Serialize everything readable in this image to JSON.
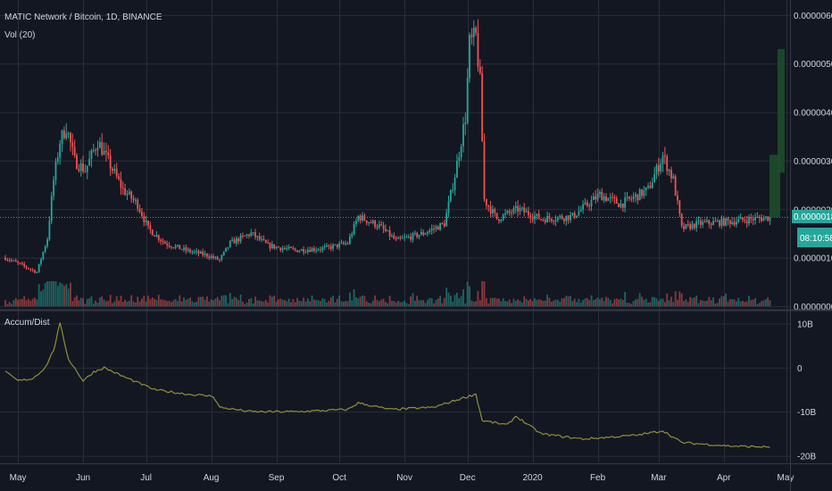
{
  "header": {
    "symbol_title": "MATIC Network / Bitcoin, 1D, BINANCE",
    "volume_label": "Vol (20)",
    "indicator_label": "Accum/Dist"
  },
  "price_badges": {
    "last_price": "0.00000183",
    "countdown": "08:10:58"
  },
  "colors": {
    "background": "#131722",
    "grid": "#2a2e39",
    "up": "#26a69a",
    "down": "#ef5350",
    "ad_line": "#8f8f3a",
    "projection": "#1e4d2b",
    "price_line": "#26a69a"
  },
  "chart_data": [
    {
      "type": "candlestick",
      "panel": "price",
      "y_tick_labels": [
        "0.00000600",
        "0.00000500",
        "0.00000400",
        "0.00000300",
        "0.00000200",
        "0.00000100",
        "0.00000000"
      ],
      "y_ticks": [
        6e-06,
        5e-06,
        4e-06,
        3e-06,
        2e-06,
        1e-06,
        0
      ],
      "ylim": [
        0,
        6.2e-06
      ],
      "last_value": 1.83e-06,
      "keypoints_date_close": [
        [
          "2019-04-25",
          1e-06
        ],
        [
          "2019-05-05",
          8e-07
        ],
        [
          "2019-05-10",
          7e-07
        ],
        [
          "2019-05-15",
          1.4e-06
        ],
        [
          "2019-05-18",
          2.6e-06
        ],
        [
          "2019-05-21",
          3.4e-06
        ],
        [
          "2019-05-24",
          3.7e-06
        ],
        [
          "2019-05-28",
          3e-06
        ],
        [
          "2019-06-02",
          2.8e-06
        ],
        [
          "2019-06-08",
          3.4e-06
        ],
        [
          "2019-06-14",
          2.9e-06
        ],
        [
          "2019-06-20",
          2.4e-06
        ],
        [
          "2019-06-27",
          2.1e-06
        ],
        [
          "2019-07-02",
          1.6e-06
        ],
        [
          "2019-07-10",
          1.3e-06
        ],
        [
          "2019-07-20",
          1.15e-06
        ],
        [
          "2019-07-30",
          1.05e-06
        ],
        [
          "2019-08-05",
          9.5e-07
        ],
        [
          "2019-08-10",
          1.3e-06
        ],
        [
          "2019-08-20",
          1.5e-06
        ],
        [
          "2019-08-28",
          1.25e-06
        ],
        [
          "2019-09-10",
          1.15e-06
        ],
        [
          "2019-09-25",
          1.2e-06
        ],
        [
          "2019-10-05",
          1.3e-06
        ],
        [
          "2019-10-10",
          1.85e-06
        ],
        [
          "2019-10-20",
          1.65e-06
        ],
        [
          "2019-10-28",
          1.35e-06
        ],
        [
          "2019-11-10",
          1.5e-06
        ],
        [
          "2019-11-20",
          1.7e-06
        ],
        [
          "2019-11-25",
          2.7e-06
        ],
        [
          "2019-11-30",
          3.9e-06
        ],
        [
          "2019-12-02",
          5.4e-06
        ],
        [
          "2019-12-05",
          5.55e-06
        ],
        [
          "2019-12-07",
          4.6e-06
        ],
        [
          "2019-12-09",
          2.2e-06
        ],
        [
          "2019-12-15",
          1.8e-06
        ],
        [
          "2019-12-25",
          2e-06
        ],
        [
          "2020-01-05",
          1.8e-06
        ],
        [
          "2020-01-20",
          1.85e-06
        ],
        [
          "2020-02-02",
          2.3e-06
        ],
        [
          "2020-02-12",
          2.1e-06
        ],
        [
          "2020-02-25",
          2.4e-06
        ],
        [
          "2020-03-03",
          3.1e-06
        ],
        [
          "2020-03-08",
          2.6e-06
        ],
        [
          "2020-03-12",
          1.6e-06
        ],
        [
          "2020-03-20",
          1.7e-06
        ],
        [
          "2020-04-05",
          1.75e-06
        ],
        [
          "2020-04-15",
          1.8e-06
        ],
        [
          "2020-04-23",
          1.83e-06
        ]
      ]
    },
    {
      "type": "bar",
      "panel": "volume",
      "name": "Vol (20)"
    },
    {
      "type": "line",
      "panel": "indicator",
      "name": "Accum/Dist",
      "y_tick_labels": [
        "10B",
        "0",
        "-10B",
        "-20B"
      ],
      "y_ticks": [
        10,
        0,
        -10,
        -20
      ],
      "ylim": [
        -21.5,
        12.5
      ],
      "keypoints_date_value": [
        [
          "2019-04-25",
          -1
        ],
        [
          "2019-05-01",
          -3
        ],
        [
          "2019-05-08",
          -2.5
        ],
        [
          "2019-05-14",
          0
        ],
        [
          "2019-05-18",
          4
        ],
        [
          "2019-05-21",
          10
        ],
        [
          "2019-05-25",
          2
        ],
        [
          "2019-06-01",
          -3
        ],
        [
          "2019-06-06",
          -1
        ],
        [
          "2019-06-11",
          0
        ],
        [
          "2019-06-20",
          -2
        ],
        [
          "2019-07-05",
          -5
        ],
        [
          "2019-07-20",
          -6
        ],
        [
          "2019-08-02",
          -6.5
        ],
        [
          "2019-08-05",
          -9
        ],
        [
          "2019-08-20",
          -10
        ],
        [
          "2019-09-10",
          -10
        ],
        [
          "2019-10-05",
          -9.5
        ],
        [
          "2019-10-10",
          -8
        ],
        [
          "2019-10-25",
          -9.5
        ],
        [
          "2019-11-15",
          -9
        ],
        [
          "2019-11-28",
          -7
        ],
        [
          "2019-12-05",
          -6
        ],
        [
          "2019-12-08",
          -12
        ],
        [
          "2019-12-20",
          -13
        ],
        [
          "2019-12-24",
          -11
        ],
        [
          "2020-01-05",
          -15
        ],
        [
          "2020-01-25",
          -16.2
        ],
        [
          "2020-02-20",
          -15.3
        ],
        [
          "2020-03-03",
          -14.3
        ],
        [
          "2020-03-12",
          -17
        ],
        [
          "2020-04-05",
          -17.8
        ],
        [
          "2020-04-23",
          -18
        ]
      ]
    }
  ],
  "x_axis": {
    "start_date": "2019-04-25",
    "end_date": "2020-04-30",
    "tick_labels": [
      "May",
      "Jun",
      "Jul",
      "Aug",
      "Sep",
      "Oct",
      "Nov",
      "Dec",
      "2020",
      "Feb",
      "Mar",
      "Apr",
      "May"
    ],
    "tick_dates": [
      "2019-05-01",
      "2019-06-01",
      "2019-07-01",
      "2019-08-01",
      "2019-09-01",
      "2019-10-01",
      "2019-11-01",
      "2019-12-01",
      "2020-01-01",
      "2020-02-01",
      "2020-03-01",
      "2020-04-01",
      "2020-05-01"
    ]
  }
}
